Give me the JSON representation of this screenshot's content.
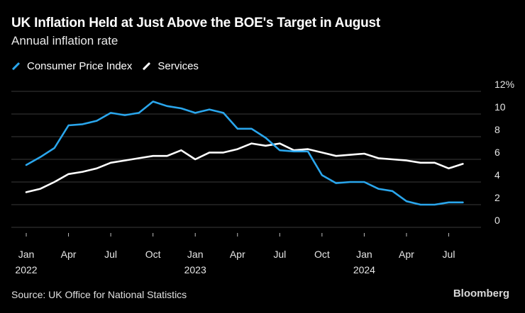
{
  "title": "UK Inflation Held at Just Above the BOE's Target in August",
  "subtitle": "Annual inflation rate",
  "colors": {
    "background": "#000000",
    "cpi": "#2aa6ec",
    "services": "#ffffff",
    "grid": "#3a3a3a"
  },
  "legend": {
    "cpi": "Consumer Price Index",
    "services": "Services"
  },
  "source": "Source: UK Office for National Statistics",
  "brand": "Bloomberg",
  "chart_data": {
    "type": "line",
    "title": "UK Inflation Held at Just Above the BOE's Target in August",
    "subtitle": "Annual inflation rate",
    "xlabel": "",
    "ylabel": "",
    "ylim": [
      0,
      12
    ],
    "yticks": [
      0,
      2,
      4,
      6,
      8,
      10,
      12
    ],
    "ytick_labels": [
      "0",
      "2",
      "4",
      "6",
      "8",
      "10",
      "12%"
    ],
    "grid": true,
    "legend_position": "top-left",
    "x": [
      "2022-01",
      "2022-02",
      "2022-03",
      "2022-04",
      "2022-05",
      "2022-06",
      "2022-07",
      "2022-08",
      "2022-09",
      "2022-10",
      "2022-11",
      "2022-12",
      "2023-01",
      "2023-02",
      "2023-03",
      "2023-04",
      "2023-05",
      "2023-06",
      "2023-07",
      "2023-08",
      "2023-09",
      "2023-10",
      "2023-11",
      "2023-12",
      "2024-01",
      "2024-02",
      "2024-03",
      "2024-04",
      "2024-05",
      "2024-06",
      "2024-07",
      "2024-08"
    ],
    "xtick_labels": [
      {
        "month": "Jan",
        "year": "2022",
        "index": 0
      },
      {
        "month": "Apr",
        "year": "",
        "index": 3
      },
      {
        "month": "Jul",
        "year": "",
        "index": 6
      },
      {
        "month": "Oct",
        "year": "",
        "index": 9
      },
      {
        "month": "Jan",
        "year": "2023",
        "index": 12
      },
      {
        "month": "Apr",
        "year": "",
        "index": 15
      },
      {
        "month": "Jul",
        "year": "",
        "index": 18
      },
      {
        "month": "Oct",
        "year": "",
        "index": 21
      },
      {
        "month": "Jan",
        "year": "2024",
        "index": 24
      },
      {
        "month": "Apr",
        "year": "",
        "index": 27
      },
      {
        "month": "Jul",
        "year": "",
        "index": 30
      }
    ],
    "series": [
      {
        "name": "Consumer Price Index",
        "key": "cpi",
        "values": [
          5.5,
          6.2,
          7.0,
          9.0,
          9.1,
          9.4,
          10.1,
          9.9,
          10.1,
          11.1,
          10.7,
          10.5,
          10.1,
          10.4,
          10.1,
          8.7,
          8.7,
          7.9,
          6.8,
          6.7,
          6.7,
          4.6,
          3.9,
          4.0,
          4.0,
          3.4,
          3.2,
          2.3,
          2.0,
          2.0,
          2.2,
          2.2
        ]
      },
      {
        "name": "Services",
        "key": "services",
        "values": [
          3.1,
          3.4,
          4.0,
          4.7,
          4.9,
          5.2,
          5.7,
          5.9,
          6.1,
          6.3,
          6.3,
          6.8,
          6.0,
          6.6,
          6.6,
          6.9,
          7.4,
          7.2,
          7.4,
          6.8,
          6.9,
          6.6,
          6.3,
          6.4,
          6.5,
          6.1,
          6.0,
          5.9,
          5.7,
          5.7,
          5.2,
          5.6
        ]
      }
    ]
  }
}
